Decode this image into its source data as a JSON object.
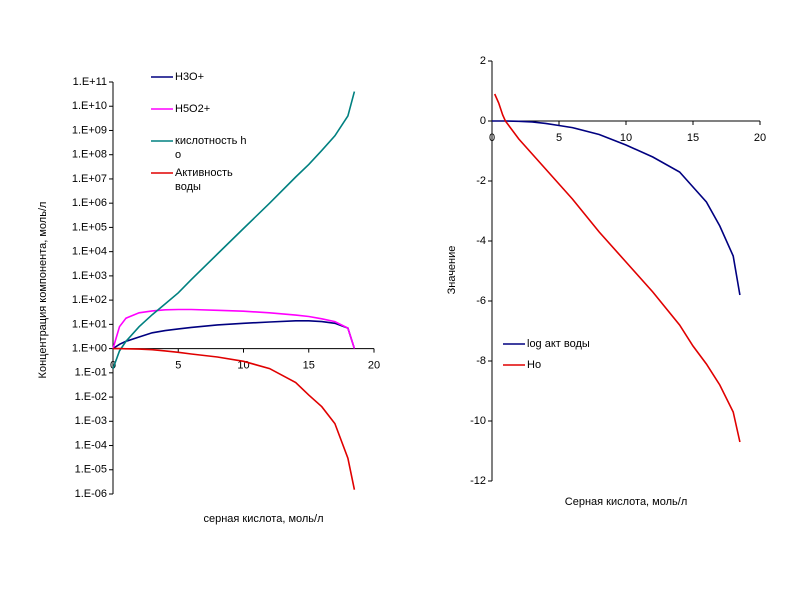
{
  "chart_data": [
    {
      "type": "line",
      "log_y": true,
      "xlabel": "серная кислота, моль/л",
      "ylabel": "Концентрация компонента, моль/л",
      "x": [
        0,
        0.5,
        1,
        2,
        3,
        4,
        5,
        6,
        8,
        10,
        12,
        14,
        15,
        16,
        17,
        18,
        18.5
      ],
      "xlim": [
        0,
        20
      ],
      "xticks": [
        0,
        5,
        10,
        15,
        20
      ],
      "ylim": [
        1e-06,
        100000000000.0
      ],
      "yticks": [
        {
          "value": 100000000000.0,
          "label": "1.E+11"
        },
        {
          "value": 10000000000.0,
          "label": "1.E+10"
        },
        {
          "value": 1000000000.0,
          "label": "1.E+09"
        },
        {
          "value": 100000000.0,
          "label": "1.E+08"
        },
        {
          "value": 10000000.0,
          "label": "1.E+07"
        },
        {
          "value": 1000000.0,
          "label": "1.E+06"
        },
        {
          "value": 100000.0,
          "label": "1.E+05"
        },
        {
          "value": 10000.0,
          "label": "1.E+04"
        },
        {
          "value": 1000.0,
          "label": "1.E+03"
        },
        {
          "value": 100.0,
          "label": "1.E+02"
        },
        {
          "value": 10.0,
          "label": "1.E+01"
        },
        {
          "value": 1,
          "label": "1.E+00"
        },
        {
          "value": 0.1,
          "label": "1.E-01"
        },
        {
          "value": 0.01,
          "label": "1.E-02"
        },
        {
          "value": 0.001,
          "label": "1.E-03"
        },
        {
          "value": 0.0001,
          "label": "1.E-04"
        },
        {
          "value": 1e-05,
          "label": "1.E-05"
        },
        {
          "value": 1e-06,
          "label": "1.E-06"
        }
      ],
      "legend": "upper-left",
      "series": [
        {
          "name": "H3O+",
          "color": "#000080",
          "values": [
            1,
            1.5,
            2,
            3,
            4.5,
            5.5,
            6.5,
            7.5,
            9.5,
            11,
            12.5,
            14,
            14,
            13,
            11,
            7,
            1
          ]
        },
        {
          "name": "H5O2+",
          "color": "#ff00ff",
          "values": [
            1,
            8,
            18,
            30,
            36,
            40,
            41,
            41,
            38,
            35,
            30,
            24,
            21,
            17,
            13,
            7,
            1
          ]
        },
        {
          "name": "кислотность h o",
          "color": "#008080",
          "values": [
            0.15,
            0.8,
            2,
            8,
            25,
            70,
            200,
            700,
            8000,
            90000,
            1000000,
            12000000,
            40000000,
            150000000,
            600000000,
            4000000000,
            40000000000
          ]
        },
        {
          "name": "Активность воды",
          "color": "#e00000",
          "values": [
            1,
            1,
            0.98,
            0.95,
            0.9,
            0.8,
            0.7,
            0.6,
            0.45,
            0.3,
            0.15,
            0.04,
            0.012,
            0.004,
            0.0008,
            3e-05,
            1.5e-06
          ]
        }
      ]
    },
    {
      "type": "line",
      "log_y": false,
      "xlabel": "Серная кислота, моль/л",
      "ylabel": "Значение",
      "x": [
        0,
        0.2,
        0.5,
        0.8,
        1,
        2,
        3,
        4,
        5,
        6,
        8,
        10,
        12,
        14,
        15,
        16,
        17,
        18,
        18.5
      ],
      "xlim": [
        0,
        20
      ],
      "xticks": [
        0,
        5,
        10,
        15,
        20
      ],
      "ylim": [
        -12,
        2
      ],
      "yticks": [
        2,
        0,
        -2,
        -4,
        -6,
        -8,
        -10,
        -12
      ],
      "legend": "lower-left",
      "series": [
        {
          "name": "log акт воды",
          "color": "#000080",
          "values": [
            0,
            0,
            0,
            0,
            0,
            -0.01,
            -0.03,
            -0.08,
            -0.15,
            -0.22,
            -0.45,
            -0.8,
            -1.2,
            -1.7,
            -2.2,
            -2.7,
            -3.5,
            -4.5,
            -5.8
          ]
        },
        {
          "name": "Ho",
          "color": "#e00000",
          "values": [
            null,
            0.9,
            0.6,
            0.2,
            0,
            -0.6,
            -1.1,
            -1.6,
            -2.1,
            -2.6,
            -3.7,
            -4.7,
            -5.7,
            -6.8,
            -7.5,
            -8.1,
            -8.8,
            -9.7,
            -10.7
          ]
        }
      ]
    }
  ]
}
